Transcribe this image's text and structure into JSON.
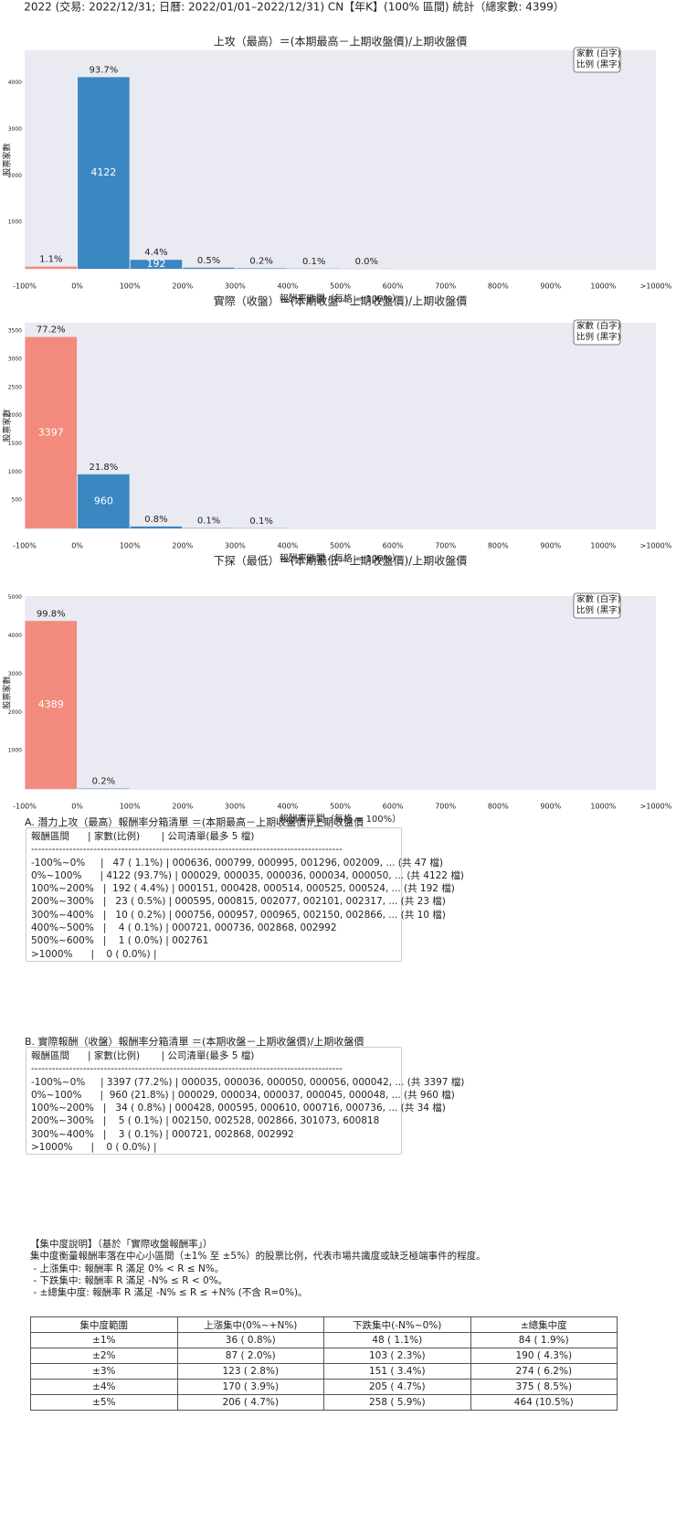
{
  "title": "2022 (交易: 2022/12/31; 日曆: 2022/01/01–2022/12/31) CN【年K】(100% 區間) 統計（總家數: 4399）",
  "chart_data": [
    {
      "type": "histogram",
      "title": "上攻（最高）＝(本期最高－上期收盤價)/上期收盤價",
      "xlabel": "報酬率區間（每格 = 100%）",
      "ylabel": "股票家數",
      "bins": [
        -100,
        0,
        100,
        200,
        300,
        400,
        500,
        600,
        700,
        800,
        900,
        1000,
        1100
      ],
      "values": [
        47,
        4122,
        192,
        23,
        10,
        4,
        1,
        0,
        0,
        0,
        0,
        0
      ],
      "share_labels": [
        "1.1%",
        "93.7%",
        "4.4%",
        "0.5%",
        "0.2%",
        "0.1%",
        "0.0%",
        null,
        null,
        null,
        null,
        null
      ],
      "colors": [
        "#f28b7d",
        "#3a87c1",
        "#3a87c1",
        "#3a87c1",
        "#3a87c1",
        "#3a87c1",
        "#3a87c1",
        "#3a87c1",
        "#3a87c1",
        "#3a87c1",
        "#3a87c1",
        "#3a87c1"
      ],
      "xlim": [
        -100,
        1100
      ],
      "xticks": [
        {
          "value": -100,
          "label": "-100%"
        },
        {
          "value": 0,
          "label": "0%"
        },
        {
          "value": 100,
          "label": "100%"
        },
        {
          "value": 200,
          "label": "200%"
        },
        {
          "value": 300,
          "label": "300%"
        },
        {
          "value": 400,
          "label": "400%"
        },
        {
          "value": 500,
          "label": "500%"
        },
        {
          "value": 600,
          "label": "600%"
        },
        {
          "value": 700,
          "label": "700%"
        },
        {
          "value": 800,
          "label": "800%"
        },
        {
          "value": 900,
          "label": "900%"
        },
        {
          "value": 1000,
          "label": "1000%"
        },
        {
          "value": 1100,
          "label": ">1000%"
        }
      ],
      "ylim": [
        0,
        4700
      ],
      "yticks": [
        1000,
        2000,
        3000,
        4000
      ],
      "grid": false,
      "legend": "upper right",
      "legend_lines": [
        "家數 (白字)",
        "比例 (黑字)"
      ]
    },
    {
      "type": "histogram",
      "title": "實際（收盤）＝(本期收盤－上期收盤價)/上期收盤價",
      "xlabel": "報酬率區間（每格 = 100%）",
      "ylabel": "股票家數",
      "bins": [
        -100,
        0,
        100,
        200,
        300,
        400,
        500,
        600,
        700,
        800,
        900,
        1000,
        1100
      ],
      "values": [
        3397,
        960,
        34,
        5,
        3,
        0,
        0,
        0,
        0,
        0,
        0,
        0
      ],
      "share_labels": [
        "77.2%",
        "21.8%",
        "0.8%",
        "0.1%",
        "0.1%",
        null,
        null,
        null,
        null,
        null,
        null,
        null
      ],
      "colors": [
        "#f28b7d",
        "#3a87c1",
        "#3a87c1",
        "#3a87c1",
        "#3a87c1",
        "#3a87c1",
        "#3a87c1",
        "#3a87c1",
        "#3a87c1",
        "#3a87c1",
        "#3a87c1",
        "#3a87c1"
      ],
      "xlim": [
        -100,
        1100
      ],
      "xticks": [
        {
          "value": -100,
          "label": "-100%"
        },
        {
          "value": 0,
          "label": "0%"
        },
        {
          "value": 100,
          "label": "100%"
        },
        {
          "value": 200,
          "label": "200%"
        },
        {
          "value": 300,
          "label": "300%"
        },
        {
          "value": 400,
          "label": "400%"
        },
        {
          "value": 500,
          "label": "500%"
        },
        {
          "value": 600,
          "label": "600%"
        },
        {
          "value": 700,
          "label": "700%"
        },
        {
          "value": 800,
          "label": "800%"
        },
        {
          "value": 900,
          "label": "900%"
        },
        {
          "value": 1000,
          "label": "1000%"
        },
        {
          "value": 1100,
          "label": ">1000%"
        }
      ],
      "ylim": [
        0,
        3650
      ],
      "yticks": [
        500,
        1000,
        1500,
        2000,
        2500,
        3000,
        3500
      ],
      "grid": false,
      "legend": "upper right",
      "legend_lines": [
        "家數 (白字)",
        "比例 (黑字)"
      ]
    },
    {
      "type": "histogram",
      "title": "下探（最低）＝(本期最低－上期收盤價)/上期收盤價",
      "xlabel": "報酬率區間（每格 = 100%）",
      "ylabel": "股票家數",
      "bins": [
        -100,
        0,
        100,
        200,
        300,
        400,
        500,
        600,
        700,
        800,
        900,
        1000,
        1100
      ],
      "values": [
        4389,
        10,
        0,
        0,
        0,
        0,
        0,
        0,
        0,
        0,
        0,
        0
      ],
      "share_labels": [
        "99.8%",
        "0.2%",
        null,
        null,
        null,
        null,
        null,
        null,
        null,
        null,
        null,
        null
      ],
      "colors": [
        "#f28b7d",
        "#3a87c1",
        "#3a87c1",
        "#3a87c1",
        "#3a87c1",
        "#3a87c1",
        "#3a87c1",
        "#3a87c1",
        "#3a87c1",
        "#3a87c1",
        "#3a87c1",
        "#3a87c1"
      ],
      "xlim": [
        -100,
        1100
      ],
      "xticks": [
        {
          "value": -100,
          "label": "-100%"
        },
        {
          "value": 0,
          "label": "0%"
        },
        {
          "value": 100,
          "label": "100%"
        },
        {
          "value": 200,
          "label": "200%"
        },
        {
          "value": 300,
          "label": "300%"
        },
        {
          "value": 400,
          "label": "400%"
        },
        {
          "value": 500,
          "label": "500%"
        },
        {
          "value": 600,
          "label": "600%"
        },
        {
          "value": 700,
          "label": "700%"
        },
        {
          "value": 800,
          "label": "800%"
        },
        {
          "value": 900,
          "label": "900%"
        },
        {
          "value": 1000,
          "label": "1000%"
        },
        {
          "value": 1100,
          "label": ">1000%"
        }
      ],
      "ylim": [
        0,
        5040
      ],
      "yticks": [
        1000,
        2000,
        3000,
        4000,
        5000
      ],
      "grid": false,
      "legend": "upper right",
      "legend_lines": [
        "家數 (白字)",
        "比例 (黑字)"
      ]
    }
  ],
  "list_a": {
    "title": "A. 潛力上攻（最高）報酬率分箱清單 ＝(本期最高－上期收盤價)/上期收盤價",
    "lines": [
      "報酬區間      | 家數(比例)       | 公司清單(最多 5 檔)",
      "------------------------------------------------------------------------------------------",
      "-100%~0%     |   47 ( 1.1%) | 000636, 000799, 000995, 001296, 002009, ... (共 47 檔)",
      "0%~100%      | 4122 (93.7%) | 000029, 000035, 000036, 000034, 000050, ... (共 4122 檔)",
      "100%~200%   |  192 ( 4.4%) | 000151, 000428, 000514, 000525, 000524, ... (共 192 檔)",
      "200%~300%   |   23 ( 0.5%) | 000595, 000815, 002077, 002101, 002317, ... (共 23 檔)",
      "300%~400%   |   10 ( 0.2%) | 000756, 000957, 000965, 002150, 002866, ... (共 10 檔)",
      "400%~500%   |    4 ( 0.1%) | 000721, 000736, 002868, 002992",
      "500%~600%   |    1 ( 0.0%) | 002761",
      ">1000%      |    0 ( 0.0%) |"
    ]
  },
  "list_b": {
    "title": "B. 實際報酬（收盤）報酬率分箱清單 ＝(本期收盤－上期收盤價)/上期收盤價",
    "lines": [
      "報酬區間      | 家數(比例)       | 公司清單(最多 5 檔)",
      "------------------------------------------------------------------------------------------",
      "-100%~0%     | 3397 (77.2%) | 000035, 000036, 000050, 000056, 000042, ... (共 3397 檔)",
      "0%~100%      |  960 (21.8%) | 000029, 000034, 000037, 000045, 000048, ... (共 960 檔)",
      "100%~200%   |   34 ( 0.8%) | 000428, 000595, 000610, 000716, 000736, ... (共 34 檔)",
      "200%~300%   |    5 ( 0.1%) | 002150, 002528, 002866, 301073, 600818",
      "300%~400%   |    3 ( 0.1%) | 000721, 002868, 002992",
      ">1000%      |    0 ( 0.0%) |"
    ]
  },
  "notes": [
    "【集中度說明】（基於「實際收盤報酬率」）",
    "集中度衡量報酬率落在中心小區間（±1% 至 ±5%）的股票比例，代表市場共識度或缺乏極端事件的程度。",
    " - 上漲集中: 報酬率 R 滿足 0% < R ≤ N%。",
    " - 下跌集中: 報酬率 R 滿足 -N% ≤ R < 0%。",
    " - ±總集中度: 報酬率 R 滿足 -N% ≤ R ≤ +N% (不含 R=0%)。"
  ],
  "table": {
    "header": [
      "集中度範圍",
      "上漲集中(0%~+N%)",
      "下跌集中(-N%~0%)",
      "±總集中度"
    ],
    "rows": [
      [
        "±1%",
        "36 ( 0.8%)",
        "48 ( 1.1%)",
        "84 ( 1.9%)"
      ],
      [
        "±2%",
        "87 ( 2.0%)",
        "103 ( 2.3%)",
        "190 ( 4.3%)"
      ],
      [
        "±3%",
        "123 ( 2.8%)",
        "151 ( 3.4%)",
        "274 ( 6.2%)"
      ],
      [
        "±4%",
        "170 ( 3.9%)",
        "205 ( 4.7%)",
        "375 ( 8.5%)"
      ],
      [
        "±5%",
        "206 ( 4.7%)",
        "258 ( 5.9%)",
        "464 (10.5%)"
      ]
    ]
  }
}
